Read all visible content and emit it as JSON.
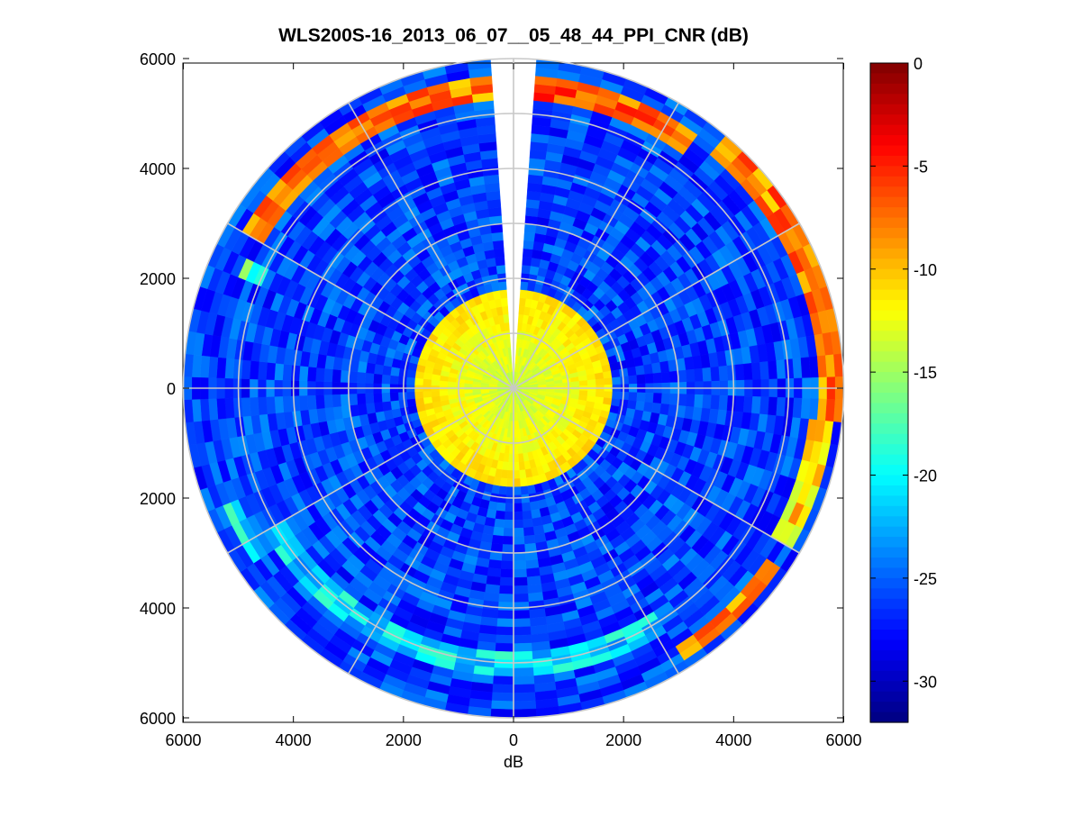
{
  "chart_data": {
    "type": "heatmap",
    "subtype": "polar-ppi",
    "title": "WLS200S-16_2013_06_07__05_48_44_PPI_CNR (dB)",
    "xlabel": "dB",
    "ylabel": "",
    "xlim": [
      -6000,
      6000
    ],
    "ylim": [
      -6000,
      6000
    ],
    "x_ticks": [
      -6000,
      -4000,
      -2000,
      0,
      2000,
      4000,
      6000
    ],
    "x_tick_labels": [
      "6000",
      "4000",
      "2000",
      "0",
      "2000",
      "4000",
      "6000"
    ],
    "y_ticks": [
      6000,
      4000,
      2000,
      0,
      -2000,
      -4000,
      -6000
    ],
    "y_tick_labels": [
      "6000",
      "4000",
      "2000",
      "0",
      "2000",
      "4000",
      "6000"
    ],
    "max_range": 6000,
    "range_rings": [
      1000,
      2000,
      3000,
      4000,
      5000,
      6000
    ],
    "spoke_angles_deg": [
      0,
      30,
      60,
      90,
      120,
      150,
      180,
      210,
      240,
      270,
      300,
      330
    ],
    "blank_sector_deg": [
      355,
      5
    ],
    "grid": true,
    "colorbar": {
      "colormap": "jet",
      "min": -32,
      "max": 0,
      "ticks": [
        0,
        -5,
        -10,
        -15,
        -20,
        -25,
        -30
      ],
      "tick_labels": [
        "0",
        "-5",
        "-10",
        "-15",
        "-20",
        "-25",
        "-30"
      ]
    },
    "field": {
      "near_range_m": 1800,
      "near_value_db": -14,
      "background_value_db": -26,
      "noise_db": 2.5,
      "features": [
        {
          "name": "hard-target-arc-north-west",
          "range_m": 5450,
          "az_from_deg": 300,
          "az_to_deg": 355,
          "value_db": -8
        },
        {
          "name": "hard-target-arc-north-east",
          "range_m": 5500,
          "az_from_deg": 5,
          "az_to_deg": 35,
          "value_db": -7
        },
        {
          "name": "hard-target-arc-east",
          "range_m": 5750,
          "az_from_deg": 40,
          "az_to_deg": 95,
          "value_db": -8
        },
        {
          "name": "hard-target-arc-east-south",
          "range_m": 5600,
          "az_from_deg": 95,
          "az_to_deg": 120,
          "value_db": -11
        },
        {
          "name": "hard-target-arc-south-east",
          "range_m": 5700,
          "az_from_deg": 125,
          "az_to_deg": 148,
          "value_db": -9
        },
        {
          "name": "weak-arc-south",
          "range_m": 5050,
          "az_from_deg": 150,
          "az_to_deg": 240,
          "value_db": -21
        },
        {
          "name": "weak-spot-west",
          "range_m": 5550,
          "az_from_deg": 238,
          "az_to_deg": 248,
          "value_db": -20
        },
        {
          "name": "weak-spot-north-west",
          "range_m": 5200,
          "az_from_deg": 292,
          "az_to_deg": 296,
          "value_db": -18
        }
      ]
    }
  }
}
